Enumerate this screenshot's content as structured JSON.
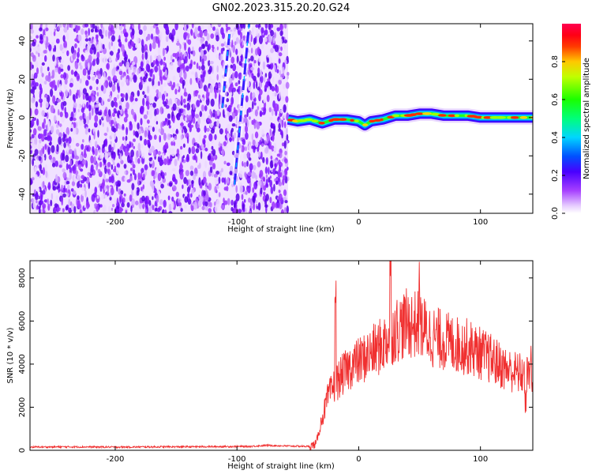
{
  "title": "GN02.2023.315.20.20.G24",
  "colors": {
    "snr_line": "#f03030",
    "axis": "#000000",
    "background": "#ffffff"
  },
  "chart_data": [
    {
      "type": "heatmap",
      "xlabel": "Height of straight line (km)",
      "ylabel": "Frequency (Hz)",
      "xlim": [
        -270,
        143
      ],
      "ylim": [
        -50,
        49
      ],
      "x_ticks": [
        -200,
        -100,
        0,
        100
      ],
      "x_tick_labels": [
        "-200",
        "-100",
        "0",
        "100"
      ],
      "y_ticks": [
        -40,
        -20,
        0,
        20,
        40
      ],
      "y_tick_labels": [
        "-40",
        "-20",
        "0",
        "20",
        "40"
      ],
      "colorbar": {
        "label": "Normalized spectral amplitude",
        "range": [
          0,
          1
        ],
        "ticks": [
          0.0,
          0.2,
          0.4,
          0.6,
          0.8
        ],
        "tick_labels": [
          "0.0",
          "0.2",
          "0.4",
          "0.6",
          "0.8"
        ],
        "colormap": "gist_rainbow_r"
      },
      "noise_region_x": [
        -270,
        -58
      ],
      "signal_band": {
        "x": [
          -58,
          -50,
          -40,
          -30,
          -20,
          -10,
          0,
          5,
          10,
          20,
          30,
          40,
          50,
          60,
          70,
          80,
          90,
          100,
          110,
          120,
          130,
          143
        ],
        "y": [
          -1,
          -2,
          -1,
          -3,
          -1,
          -1,
          -2,
          -4,
          -2,
          -1,
          1,
          1,
          2,
          2,
          1,
          1,
          1,
          0,
          0,
          0,
          0,
          0
        ]
      },
      "diagonal_streaks": [
        {
          "x_start": -102,
          "y_start": -35,
          "x_end": -90,
          "y_end": 49
        },
        {
          "x_start": -112,
          "y_start": 5,
          "x_end": -106,
          "y_end": 45
        }
      ]
    },
    {
      "type": "line",
      "xlabel": "Height of straight line (km)",
      "ylabel": "SNR (10 * v/v)",
      "xlim": [
        -270,
        143
      ],
      "ylim": [
        0,
        8800
      ],
      "x_ticks": [
        -200,
        -100,
        0,
        100
      ],
      "x_tick_labels": [
        "-200",
        "-100",
        "0",
        "100"
      ],
      "y_ticks": [
        0,
        2000,
        4000,
        6000,
        8000
      ],
      "y_tick_labels": [
        "0",
        "2000",
        "4000",
        "6000",
        "8000"
      ],
      "series": [
        {
          "x": [
            -270,
            -240,
            -200,
            -160,
            -120,
            -90,
            -75,
            -60,
            -40,
            -35,
            -30,
            -25,
            -20,
            -15,
            -10,
            -5,
            0,
            10,
            20,
            25,
            30,
            40,
            50,
            60,
            70,
            80,
            90,
            100,
            110,
            120,
            130,
            143
          ],
          "y": [
            150,
            160,
            150,
            160,
            170,
            180,
            230,
            200,
            180,
            300,
            1500,
            2500,
            3000,
            3400,
            3700,
            4000,
            4100,
            4500,
            4900,
            5300,
            5600,
            5900,
            5800,
            5300,
            5100,
            4900,
            4800,
            4500,
            4200,
            3800,
            3600,
            3400
          ],
          "peaks": [
            [
              -19,
              7200
            ],
            [
              26,
              8700
            ],
            [
              50,
              7300
            ],
            [
              141,
              4600
            ],
            [
              137,
              1900
            ]
          ]
        }
      ]
    }
  ]
}
